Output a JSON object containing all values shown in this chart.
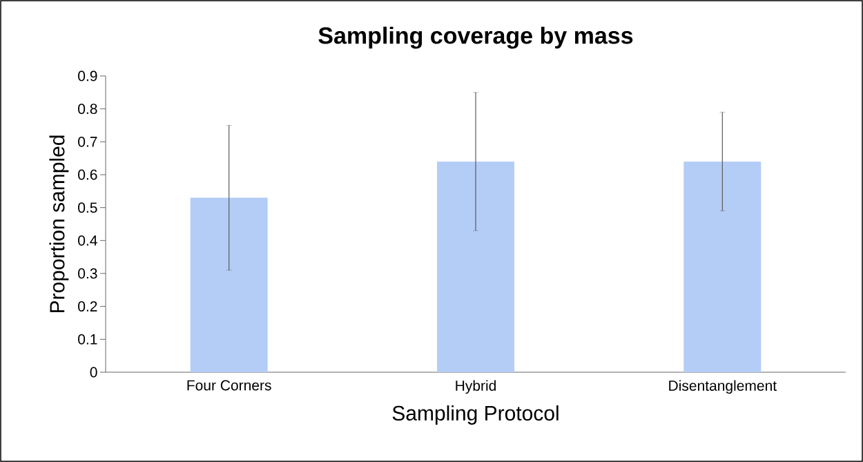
{
  "chart_data": {
    "type": "bar",
    "title": "Sampling coverage by mass",
    "xlabel": "Sampling Protocol",
    "ylabel": "Proportion sampled",
    "categories": [
      "Four Corners",
      "Hybrid",
      "Disentanglement"
    ],
    "values": [
      0.53,
      0.64,
      0.64
    ],
    "errors": [
      0.22,
      0.21,
      0.15
    ],
    "color": "#b4cdf7",
    "ylim": [
      0,
      0.9
    ],
    "yticks": [
      0,
      0.1,
      0.2,
      0.3,
      0.4,
      0.5,
      0.6,
      0.7,
      0.8,
      0.9
    ],
    "grid": false
  }
}
